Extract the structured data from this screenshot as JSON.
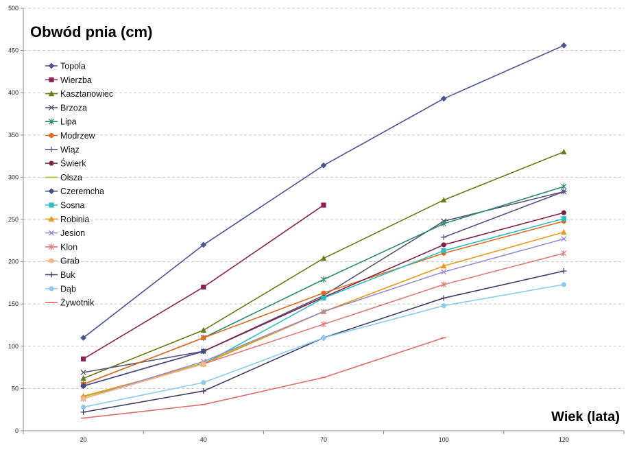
{
  "chart_data": {
    "type": "line",
    "title": "Obwód pnia (cm)",
    "xlabel": "Wiek (lata)",
    "ylabel": "",
    "categories": [
      "20",
      "40",
      "70",
      "100",
      "120"
    ],
    "ylim": [
      0,
      500
    ],
    "yticks": [
      0,
      50,
      100,
      150,
      200,
      250,
      300,
      350,
      400,
      450,
      500
    ],
    "grid": true,
    "legend_position": "top-left",
    "series": [
      {
        "name": "Topola",
        "color": "#4a5496",
        "marker": "diamond",
        "values": [
          110,
          220,
          314,
          393,
          456
        ]
      },
      {
        "name": "Wierzba",
        "color": "#8b2252",
        "marker": "square",
        "values": [
          85,
          170,
          267,
          null,
          null
        ]
      },
      {
        "name": "Kasztanowiec",
        "color": "#6b7a12",
        "marker": "triangle",
        "values": [
          62,
          119,
          204,
          273,
          330
        ]
      },
      {
        "name": "Brzoza",
        "color": "#55557a",
        "marker": "x",
        "values": [
          69,
          94,
          160,
          248,
          283
        ]
      },
      {
        "name": "Lipa",
        "color": "#2a8a6e",
        "marker": "star",
        "values": [
          55,
          110,
          179,
          245,
          289
        ]
      },
      {
        "name": "Modrzew",
        "color": "#e06a1e",
        "marker": "circle",
        "values": [
          55,
          110,
          163,
          210,
          248
        ]
      },
      {
        "name": "Wiąz",
        "color": "#5a4f86",
        "marker": "plus",
        "values": [
          null,
          null,
          null,
          229,
          283
        ]
      },
      {
        "name": "Świerk",
        "color": "#7d2247",
        "marker": "circle",
        "values": [
          53,
          94,
          158,
          220,
          258
        ]
      },
      {
        "name": "Olsza",
        "color": "#a8c41a",
        "marker": "dash",
        "values": [
          40,
          80,
          141,
          null,
          null
        ]
      },
      {
        "name": "Czeremcha",
        "color": "#404e84",
        "marker": "diamond",
        "values": [
          53,
          94,
          null,
          null,
          null
        ]
      },
      {
        "name": "Sosna",
        "color": "#2fbcc4",
        "marker": "square",
        "values": [
          null,
          79,
          157,
          213,
          251
        ]
      },
      {
        "name": "Robinia",
        "color": "#e59a1a",
        "marker": "triangle",
        "values": [
          41,
          79,
          141,
          195,
          235
        ]
      },
      {
        "name": "Jesion",
        "color": "#9a8ad4",
        "marker": "x",
        "values": [
          38,
          82,
          141,
          188,
          227
        ]
      },
      {
        "name": "Klon",
        "color": "#e07a78",
        "marker": "star",
        "values": [
          38,
          79,
          126,
          173,
          210
        ]
      },
      {
        "name": "Grab",
        "color": "#f5b98a",
        "marker": "circle",
        "values": [
          38,
          79,
          null,
          null,
          null
        ]
      },
      {
        "name": "Buk",
        "color": "#3d3f66",
        "marker": "plus",
        "values": [
          22,
          47,
          110,
          157,
          189
        ]
      },
      {
        "name": "Dąb",
        "color": "#8ccaf0",
        "marker": "circle",
        "values": [
          28,
          57,
          110,
          148,
          173
        ]
      },
      {
        "name": "Żywotnik",
        "color": "#e06b6b",
        "marker": "dash",
        "values": [
          15,
          31,
          63,
          110,
          null
        ]
      }
    ]
  }
}
